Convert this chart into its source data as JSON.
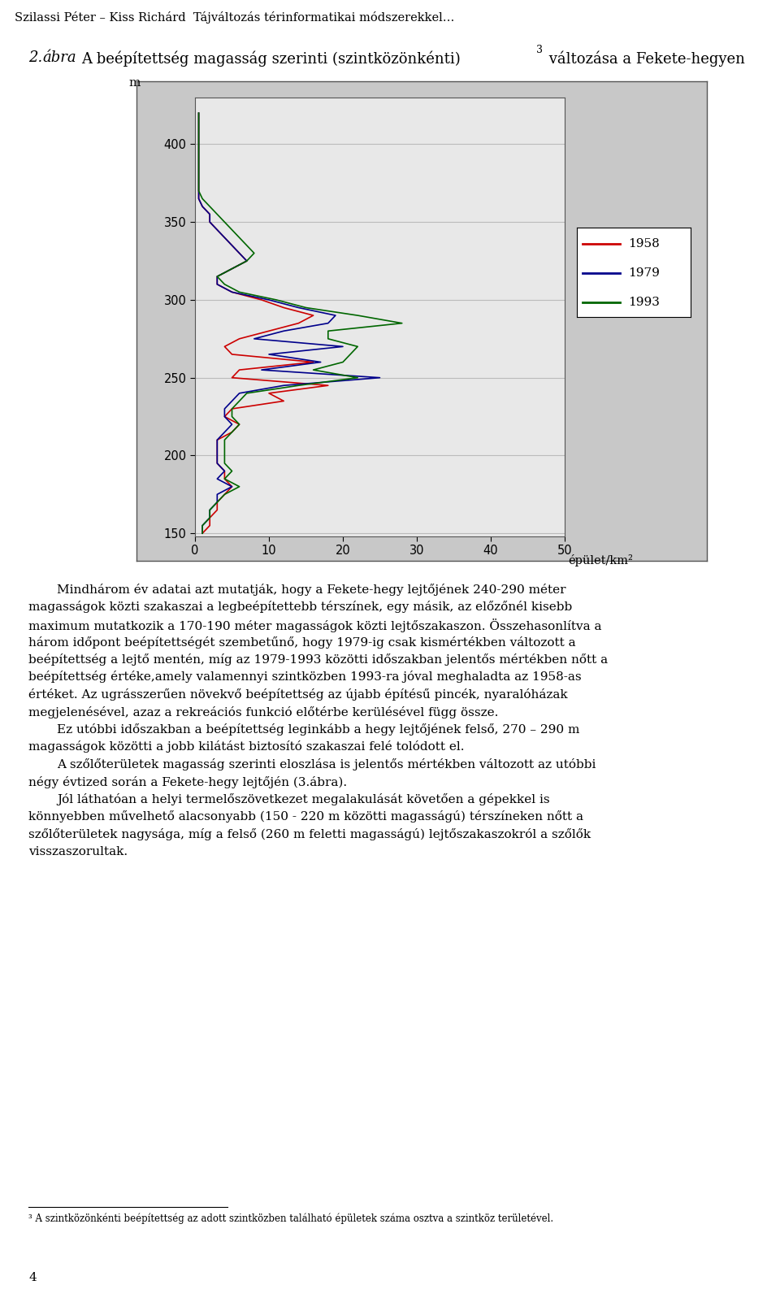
{
  "header_line1": "Szilassi Péter – Kiss Richárd  Tájváltozás térinformatikai módszerekkel…",
  "legend_labels": [
    "1958",
    "1979",
    "1993"
  ],
  "legend_colors": [
    "#CC0000",
    "#00008B",
    "#006600"
  ],
  "xlim": [
    0,
    50
  ],
  "ylim": [
    148,
    430
  ],
  "yticks": [
    150,
    200,
    250,
    300,
    350,
    400
  ],
  "xticks": [
    0,
    10,
    20,
    30,
    40,
    50
  ],
  "elev": [
    420,
    415,
    410,
    405,
    400,
    395,
    390,
    385,
    380,
    375,
    370,
    365,
    360,
    355,
    350,
    345,
    340,
    335,
    330,
    325,
    320,
    315,
    310,
    305,
    300,
    295,
    290,
    285,
    280,
    275,
    270,
    265,
    260,
    255,
    250,
    245,
    240,
    235,
    230,
    225,
    220,
    215,
    210,
    205,
    200,
    195,
    190,
    185,
    180,
    175,
    170,
    165,
    160,
    155,
    150
  ],
  "x1958": [
    0.5,
    0.5,
    0.5,
    0.5,
    0.5,
    0.5,
    0.5,
    0.5,
    0.5,
    0.5,
    0.5,
    0.5,
    1,
    2,
    2,
    3,
    4,
    5,
    6,
    7,
    5,
    3,
    3,
    5,
    9,
    12,
    16,
    14,
    10,
    6,
    4,
    5,
    16,
    6,
    5,
    18,
    10,
    12,
    5,
    4,
    6,
    5,
    3,
    3,
    3,
    3,
    4,
    4,
    5,
    4,
    3,
    3,
    2,
    2,
    1
  ],
  "x1979": [
    0.5,
    0.5,
    0.5,
    0.5,
    0.5,
    0.5,
    0.5,
    0.5,
    0.5,
    0.5,
    0.5,
    0.5,
    1,
    2,
    2,
    3,
    4,
    5,
    6,
    7,
    5,
    3,
    3,
    5,
    10,
    14,
    19,
    18,
    12,
    8,
    20,
    10,
    17,
    9,
    25,
    12,
    6,
    5,
    4,
    4,
    5,
    4,
    3,
    3,
    3,
    3,
    4,
    3,
    5,
    3,
    3,
    2,
    2,
    1,
    1
  ],
  "x1993": [
    0.5,
    0.5,
    0.5,
    0.5,
    0.5,
    0.5,
    0.5,
    0.5,
    0.5,
    0.5,
    0.5,
    1,
    2,
    3,
    4,
    5,
    6,
    7,
    8,
    7,
    5,
    3,
    4,
    6,
    11,
    15,
    22,
    28,
    18,
    18,
    22,
    21,
    20,
    16,
    22,
    14,
    7,
    6,
    5,
    5,
    6,
    5,
    4,
    4,
    4,
    4,
    5,
    4,
    6,
    4,
    3,
    2,
    2,
    1,
    1
  ],
  "bg_color": "#FFFFFF",
  "chart_bg": "#E8E8E8",
  "outer_bg": "#C8C8C8",
  "grid_color": "#BBBBBB",
  "footnote": "A szintközönkénti beépítettség az adott szintközben található épületek száma osztva a szintköz területével.",
  "page_number": "4"
}
